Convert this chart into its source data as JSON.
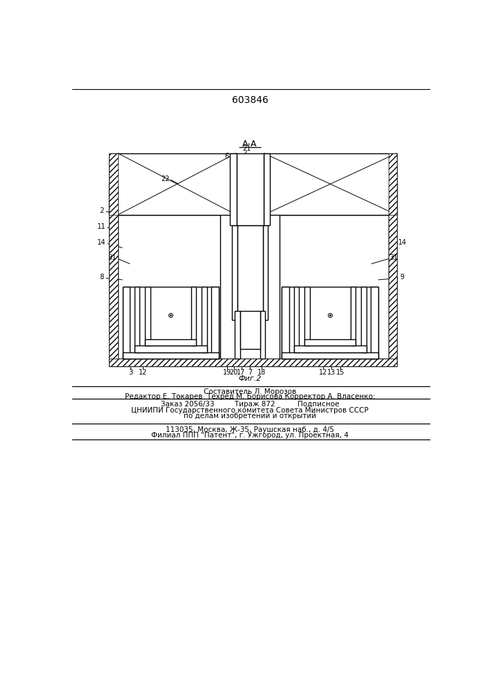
{
  "patent_number": "603846",
  "section_label": "А-А",
  "fig_label": "Фиг.2",
  "bg_color": "#ffffff",
  "line_color": "#000000",
  "footer_lines": [
    "Составитель Л. Морозов",
    "Редактор Е. Токарев  Техред М. Борисова Корректор А. Власенко:",
    "Заказ 2056/33         Тираж 872          Подписное",
    "ЦНИИПИ Государственного комитета Совета Министров СССР",
    "по делам изобретений и открытий",
    "113035, Москва, Ж-35, Раушская наб., д. 4/5",
    "Филиал ППП \"Патент\", г. Ужгород, ул. Проектная, 4"
  ]
}
